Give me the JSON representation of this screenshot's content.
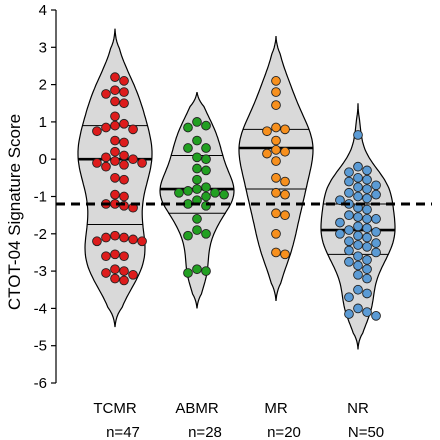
{
  "chart_data": {
    "type": "violin",
    "ylabel": "CTOT-04 Signature Score",
    "xlabel": "",
    "ylim": [
      -6,
      4
    ],
    "yticks": [
      -6,
      -5,
      -4,
      -3,
      -2,
      -1,
      0,
      1,
      2,
      3,
      4
    ],
    "threshold": -1.2,
    "grid": false,
    "groups": [
      {
        "name": "TCMR",
        "n_label": "n=47",
        "color": "#dd1c1c",
        "median": 0.0,
        "quartiles": [
          -1.75,
          0.9
        ],
        "range": [
          -4.5,
          3.5
        ],
        "points": [
          2.2,
          2.1,
          1.85,
          1.8,
          1.75,
          1.55,
          1.5,
          1.15,
          0.95,
          0.9,
          0.85,
          0.8,
          0.75,
          0.5,
          0.45,
          0.2,
          0.1,
          0.05,
          0.0,
          -0.05,
          -0.1,
          -0.1,
          -0.15,
          -0.2,
          -0.5,
          -0.55,
          -0.95,
          -1.0,
          -1.2,
          -1.2,
          -1.25,
          -1.3,
          -2.05,
          -2.1,
          -2.1,
          -2.15,
          -2.2,
          -2.2,
          -2.55,
          -2.6,
          -2.6,
          -2.95,
          -3.0,
          -3.05,
          -3.1,
          -3.2,
          -3.25
        ]
      },
      {
        "name": "ABMR",
        "n_label": "n=28",
        "color": "#22a022",
        "median": -0.8,
        "quartiles": [
          -1.45,
          0.1
        ],
        "range": [
          -4.0,
          1.8
        ],
        "points": [
          1.0,
          0.9,
          0.85,
          0.5,
          0.3,
          0.3,
          0.05,
          0.0,
          -0.25,
          -0.3,
          -0.55,
          -0.75,
          -0.8,
          -0.85,
          -0.9,
          -0.9,
          -0.95,
          -1.0,
          -1.1,
          -1.2,
          -1.25,
          -1.6,
          -1.9,
          -2.0,
          -2.05,
          -2.95,
          -3.0,
          -3.05
        ]
      },
      {
        "name": "MR",
        "n_label": "n=20",
        "color": "#f7901e",
        "median": 0.3,
        "quartiles": [
          -0.8,
          0.8
        ],
        "range": [
          -3.8,
          3.3
        ],
        "points": [
          2.1,
          1.8,
          1.45,
          0.85,
          0.8,
          0.75,
          0.5,
          0.25,
          0.2,
          0.15,
          -0.05,
          -0.5,
          -0.6,
          -0.9,
          -0.95,
          -1.45,
          -1.5,
          -2.0,
          -2.5,
          -2.55
        ]
      },
      {
        "name": "NR",
        "n_label": "N=50",
        "color": "#5b9bd5",
        "median": -1.9,
        "quartiles": [
          -2.55,
          -1.2
        ],
        "range": [
          -5.1,
          1.5
        ],
        "points": [
          0.65,
          -0.2,
          -0.3,
          -0.35,
          -0.5,
          -0.55,
          -0.6,
          -0.7,
          -0.75,
          -0.8,
          -0.9,
          -0.95,
          -1.0,
          -1.05,
          -1.1,
          -1.2,
          -1.3,
          -1.35,
          -1.5,
          -1.55,
          -1.6,
          -1.6,
          -1.7,
          -1.8,
          -1.85,
          -1.9,
          -1.95,
          -2.0,
          -2.05,
          -2.1,
          -2.2,
          -2.25,
          -2.3,
          -2.35,
          -2.45,
          -2.5,
          -2.6,
          -2.7,
          -2.75,
          -2.85,
          -2.95,
          -3.1,
          -3.2,
          -3.5,
          -3.6,
          -3.7,
          -4.0,
          -4.1,
          -4.15,
          -4.2
        ]
      }
    ]
  }
}
